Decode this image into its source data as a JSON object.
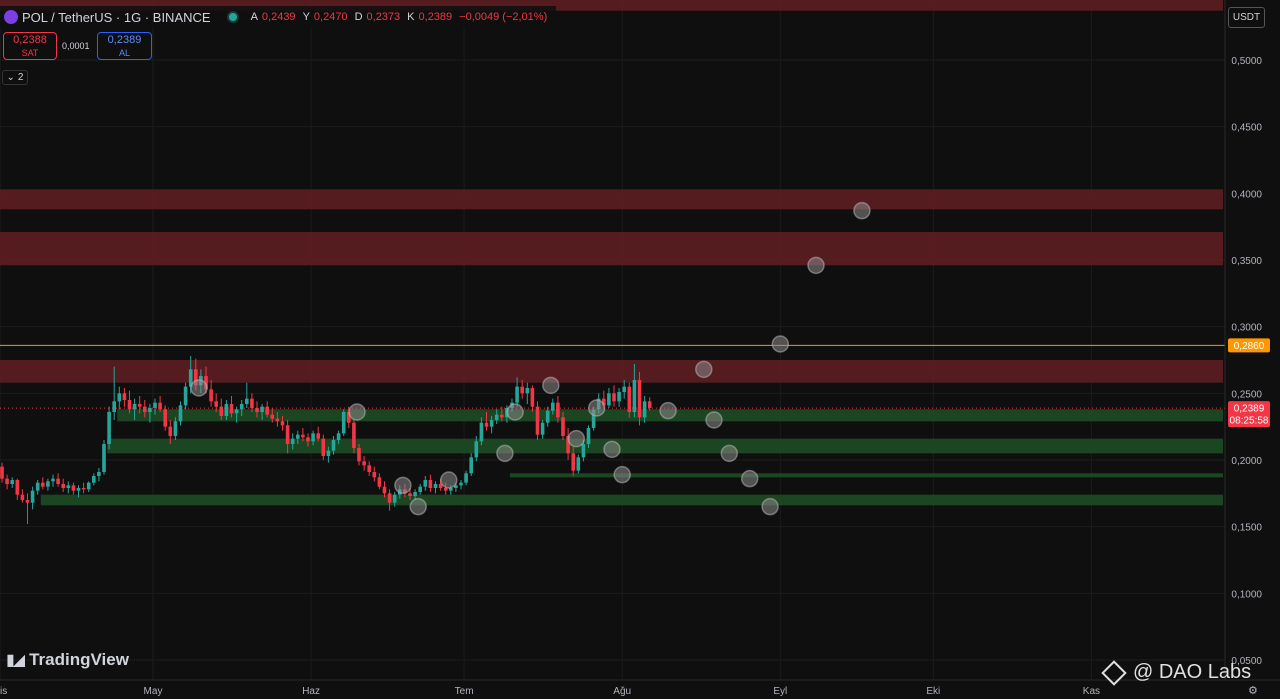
{
  "header": {
    "title": "POL / TetherUS · 1G · BINANCE",
    "ohlc": [
      {
        "label": "A",
        "value": "0,2439"
      },
      {
        "label": "Y",
        "value": "0,2470"
      },
      {
        "label": "D",
        "value": "0,2373"
      },
      {
        "label": "K",
        "value": "0,2389"
      },
      {
        "label": "",
        "value": "−0,0049 (−2,01%)"
      }
    ]
  },
  "trade": {
    "sell_price": "0,2388",
    "sell_label": "SAT",
    "spread": "0,0001",
    "buy_price": "0,2389",
    "buy_label": "AL"
  },
  "collapse_count": "2",
  "currency": "USDT",
  "branding": {
    "logo": "TradingView",
    "watermark": "@ DAO Labs"
  },
  "chart_data": {
    "type": "candlestick",
    "ylim": [
      0.035,
      0.545
    ],
    "y_ticks": [
      {
        "value": 0.05,
        "label": "0,0500"
      },
      {
        "value": 0.1,
        "label": "0,1000"
      },
      {
        "value": 0.15,
        "label": "0,1500"
      },
      {
        "value": 0.2,
        "label": "0,2000"
      },
      {
        "value": 0.25,
        "label": "0,2500"
      },
      {
        "value": 0.3,
        "label": "0,3000"
      },
      {
        "value": 0.35,
        "label": "0,3500"
      },
      {
        "value": 0.4,
        "label": "0,4000"
      },
      {
        "value": 0.45,
        "label": "0,4500"
      },
      {
        "value": 0.5,
        "label": "0,5000"
      }
    ],
    "x_ticks": [
      {
        "day": 0,
        "label": "Nis"
      },
      {
        "day": 30,
        "label": "May"
      },
      {
        "day": 61,
        "label": "Haz"
      },
      {
        "day": 91,
        "label": "Tem"
      },
      {
        "day": 122,
        "label": "Ağu"
      },
      {
        "day": 153,
        "label": "Eyl"
      },
      {
        "day": 183,
        "label": "Eki"
      },
      {
        "day": 214,
        "label": "Kas"
      }
    ],
    "price_labels": [
      {
        "value": 0.286,
        "label": "0,2860",
        "color": "#ff9800"
      },
      {
        "value": 0.2389,
        "label": "0,2389",
        "sublabel": "08:25:58",
        "color": "#f23645"
      }
    ],
    "resistance_zones": [
      {
        "low": 0.537,
        "high": 0.555
      },
      {
        "low": 0.388,
        "high": 0.403
      },
      {
        "low": 0.346,
        "high": 0.371
      },
      {
        "low": 0.258,
        "high": 0.275
      }
    ],
    "support_zones": [
      {
        "low": 0.229,
        "high": 0.238,
        "start_day": 23
      },
      {
        "low": 0.205,
        "high": 0.216,
        "start_day": 21
      },
      {
        "low": 0.187,
        "high": 0.19,
        "start_day": 100
      },
      {
        "low": 0.166,
        "high": 0.174,
        "start_day": 8
      }
    ],
    "hline": {
      "value": 0.286,
      "color": "#ff9800"
    },
    "current_price": 0.2389,
    "markers": [
      {
        "day": 39,
        "value": 0.254
      },
      {
        "day": 70,
        "value": 0.236
      },
      {
        "day": 79,
        "value": 0.181
      },
      {
        "day": 82,
        "value": 0.165
      },
      {
        "day": 88,
        "value": 0.185
      },
      {
        "day": 99,
        "value": 0.205
      },
      {
        "day": 101,
        "value": 0.236
      },
      {
        "day": 108,
        "value": 0.256
      },
      {
        "day": 113,
        "value": 0.216
      },
      {
        "day": 117,
        "value": 0.239
      },
      {
        "day": 120,
        "value": 0.208
      },
      {
        "day": 122,
        "value": 0.189
      },
      {
        "day": 131,
        "value": 0.237
      },
      {
        "day": 138,
        "value": 0.268
      },
      {
        "day": 140,
        "value": 0.23
      },
      {
        "day": 143,
        "value": 0.205
      },
      {
        "day": 147,
        "value": 0.186
      },
      {
        "day": 151,
        "value": 0.165
      },
      {
        "day": 153,
        "value": 0.287
      },
      {
        "day": 160,
        "value": 0.346
      },
      {
        "day": 169,
        "value": 0.387
      }
    ],
    "candles": [
      [
        0.195,
        0.198,
        0.183,
        0.186
      ],
      [
        0.186,
        0.189,
        0.178,
        0.182
      ],
      [
        0.182,
        0.187,
        0.179,
        0.185
      ],
      [
        0.185,
        0.186,
        0.17,
        0.174
      ],
      [
        0.174,
        0.178,
        0.168,
        0.17
      ],
      [
        0.17,
        0.175,
        0.152,
        0.168
      ],
      [
        0.168,
        0.18,
        0.163,
        0.177
      ],
      [
        0.177,
        0.185,
        0.174,
        0.183
      ],
      [
        0.183,
        0.187,
        0.178,
        0.18
      ],
      [
        0.18,
        0.186,
        0.177,
        0.184
      ],
      [
        0.184,
        0.189,
        0.18,
        0.186
      ],
      [
        0.186,
        0.19,
        0.18,
        0.182
      ],
      [
        0.182,
        0.186,
        0.176,
        0.179
      ],
      [
        0.179,
        0.184,
        0.175,
        0.181
      ],
      [
        0.181,
        0.183,
        0.174,
        0.177
      ],
      [
        0.177,
        0.181,
        0.172,
        0.179
      ],
      [
        0.179,
        0.183,
        0.175,
        0.178
      ],
      [
        0.178,
        0.184,
        0.176,
        0.183
      ],
      [
        0.183,
        0.19,
        0.181,
        0.188
      ],
      [
        0.188,
        0.194,
        0.184,
        0.191
      ],
      [
        0.191,
        0.215,
        0.189,
        0.212
      ],
      [
        0.212,
        0.24,
        0.208,
        0.236
      ],
      [
        0.236,
        0.27,
        0.23,
        0.244
      ],
      [
        0.244,
        0.255,
        0.238,
        0.25
      ],
      [
        0.25,
        0.254,
        0.24,
        0.245
      ],
      [
        0.245,
        0.252,
        0.235,
        0.238
      ],
      [
        0.238,
        0.246,
        0.23,
        0.242
      ],
      [
        0.242,
        0.248,
        0.235,
        0.24
      ],
      [
        0.24,
        0.245,
        0.232,
        0.236
      ],
      [
        0.236,
        0.242,
        0.228,
        0.239
      ],
      [
        0.239,
        0.246,
        0.234,
        0.243
      ],
      [
        0.243,
        0.248,
        0.236,
        0.238
      ],
      [
        0.238,
        0.241,
        0.222,
        0.225
      ],
      [
        0.225,
        0.23,
        0.212,
        0.218
      ],
      [
        0.218,
        0.232,
        0.215,
        0.229
      ],
      [
        0.229,
        0.244,
        0.226,
        0.241
      ],
      [
        0.241,
        0.258,
        0.238,
        0.255
      ],
      [
        0.255,
        0.278,
        0.25,
        0.268
      ],
      [
        0.268,
        0.276,
        0.252,
        0.256
      ],
      [
        0.256,
        0.268,
        0.25,
        0.263
      ],
      [
        0.263,
        0.27,
        0.25,
        0.253
      ],
      [
        0.253,
        0.26,
        0.24,
        0.244
      ],
      [
        0.244,
        0.25,
        0.236,
        0.24
      ],
      [
        0.24,
        0.246,
        0.23,
        0.233
      ],
      [
        0.233,
        0.245,
        0.23,
        0.242
      ],
      [
        0.242,
        0.248,
        0.232,
        0.235
      ],
      [
        0.235,
        0.24,
        0.228,
        0.238
      ],
      [
        0.238,
        0.245,
        0.233,
        0.242
      ],
      [
        0.242,
        0.258,
        0.239,
        0.246
      ],
      [
        0.246,
        0.25,
        0.236,
        0.239
      ],
      [
        0.239,
        0.244,
        0.232,
        0.236
      ],
      [
        0.236,
        0.242,
        0.23,
        0.24
      ],
      [
        0.24,
        0.244,
        0.232,
        0.234
      ],
      [
        0.234,
        0.239,
        0.228,
        0.231
      ],
      [
        0.231,
        0.236,
        0.225,
        0.229
      ],
      [
        0.229,
        0.233,
        0.222,
        0.226
      ],
      [
        0.226,
        0.23,
        0.205,
        0.212
      ],
      [
        0.212,
        0.22,
        0.208,
        0.216
      ],
      [
        0.216,
        0.222,
        0.212,
        0.219
      ],
      [
        0.219,
        0.224,
        0.214,
        0.217
      ],
      [
        0.217,
        0.22,
        0.21,
        0.214
      ],
      [
        0.214,
        0.222,
        0.211,
        0.22
      ],
      [
        0.22,
        0.225,
        0.214,
        0.216
      ],
      [
        0.216,
        0.219,
        0.2,
        0.203
      ],
      [
        0.203,
        0.21,
        0.198,
        0.207
      ],
      [
        0.207,
        0.218,
        0.204,
        0.215
      ],
      [
        0.215,
        0.222,
        0.212,
        0.22
      ],
      [
        0.22,
        0.238,
        0.218,
        0.236
      ],
      [
        0.236,
        0.24,
        0.224,
        0.228
      ],
      [
        0.228,
        0.231,
        0.205,
        0.209
      ],
      [
        0.209,
        0.212,
        0.196,
        0.199
      ],
      [
        0.199,
        0.203,
        0.192,
        0.196
      ],
      [
        0.196,
        0.199,
        0.188,
        0.191
      ],
      [
        0.191,
        0.195,
        0.184,
        0.187
      ],
      [
        0.187,
        0.19,
        0.178,
        0.18
      ],
      [
        0.18,
        0.184,
        0.172,
        0.175
      ],
      [
        0.175,
        0.178,
        0.162,
        0.168
      ],
      [
        0.168,
        0.176,
        0.165,
        0.174
      ],
      [
        0.174,
        0.181,
        0.171,
        0.178
      ],
      [
        0.178,
        0.182,
        0.172,
        0.175
      ],
      [
        0.175,
        0.179,
        0.17,
        0.173
      ],
      [
        0.173,
        0.178,
        0.17,
        0.176
      ],
      [
        0.176,
        0.182,
        0.174,
        0.18
      ],
      [
        0.18,
        0.188,
        0.177,
        0.185
      ],
      [
        0.185,
        0.189,
        0.176,
        0.179
      ],
      [
        0.179,
        0.184,
        0.175,
        0.182
      ],
      [
        0.182,
        0.186,
        0.177,
        0.179
      ],
      [
        0.179,
        0.183,
        0.174,
        0.177
      ],
      [
        0.177,
        0.181,
        0.174,
        0.179
      ],
      [
        0.179,
        0.183,
        0.176,
        0.181
      ],
      [
        0.181,
        0.185,
        0.178,
        0.183
      ],
      [
        0.183,
        0.192,
        0.181,
        0.19
      ],
      [
        0.19,
        0.205,
        0.188,
        0.202
      ],
      [
        0.202,
        0.218,
        0.199,
        0.214
      ],
      [
        0.214,
        0.232,
        0.211,
        0.228
      ],
      [
        0.228,
        0.236,
        0.222,
        0.225
      ],
      [
        0.225,
        0.233,
        0.22,
        0.23
      ],
      [
        0.23,
        0.238,
        0.227,
        0.234
      ],
      [
        0.234,
        0.24,
        0.229,
        0.232
      ],
      [
        0.232,
        0.241,
        0.228,
        0.239
      ],
      [
        0.239,
        0.246,
        0.236,
        0.243
      ],
      [
        0.243,
        0.262,
        0.24,
        0.255
      ],
      [
        0.255,
        0.26,
        0.246,
        0.25
      ],
      [
        0.25,
        0.258,
        0.242,
        0.254
      ],
      [
        0.254,
        0.256,
        0.236,
        0.24
      ],
      [
        0.24,
        0.244,
        0.215,
        0.219
      ],
      [
        0.219,
        0.23,
        0.216,
        0.228
      ],
      [
        0.228,
        0.24,
        0.225,
        0.237
      ],
      [
        0.237,
        0.246,
        0.234,
        0.243
      ],
      [
        0.243,
        0.248,
        0.228,
        0.232
      ],
      [
        0.232,
        0.236,
        0.215,
        0.218
      ],
      [
        0.218,
        0.224,
        0.2,
        0.205
      ],
      [
        0.205,
        0.21,
        0.188,
        0.192
      ],
      [
        0.192,
        0.204,
        0.19,
        0.202
      ],
      [
        0.202,
        0.215,
        0.199,
        0.212
      ],
      [
        0.212,
        0.226,
        0.209,
        0.224
      ],
      [
        0.224,
        0.24,
        0.222,
        0.238
      ],
      [
        0.238,
        0.25,
        0.235,
        0.246
      ],
      [
        0.246,
        0.252,
        0.238,
        0.241
      ],
      [
        0.241,
        0.254,
        0.239,
        0.25
      ],
      [
        0.25,
        0.256,
        0.24,
        0.244
      ],
      [
        0.244,
        0.254,
        0.24,
        0.251
      ],
      [
        0.251,
        0.26,
        0.246,
        0.255
      ],
      [
        0.255,
        0.258,
        0.232,
        0.236
      ],
      [
        0.236,
        0.272,
        0.232,
        0.26
      ],
      [
        0.26,
        0.266,
        0.226,
        0.232
      ],
      [
        0.232,
        0.248,
        0.228,
        0.244
      ],
      [
        0.244,
        0.247,
        0.237,
        0.239
      ]
    ]
  }
}
